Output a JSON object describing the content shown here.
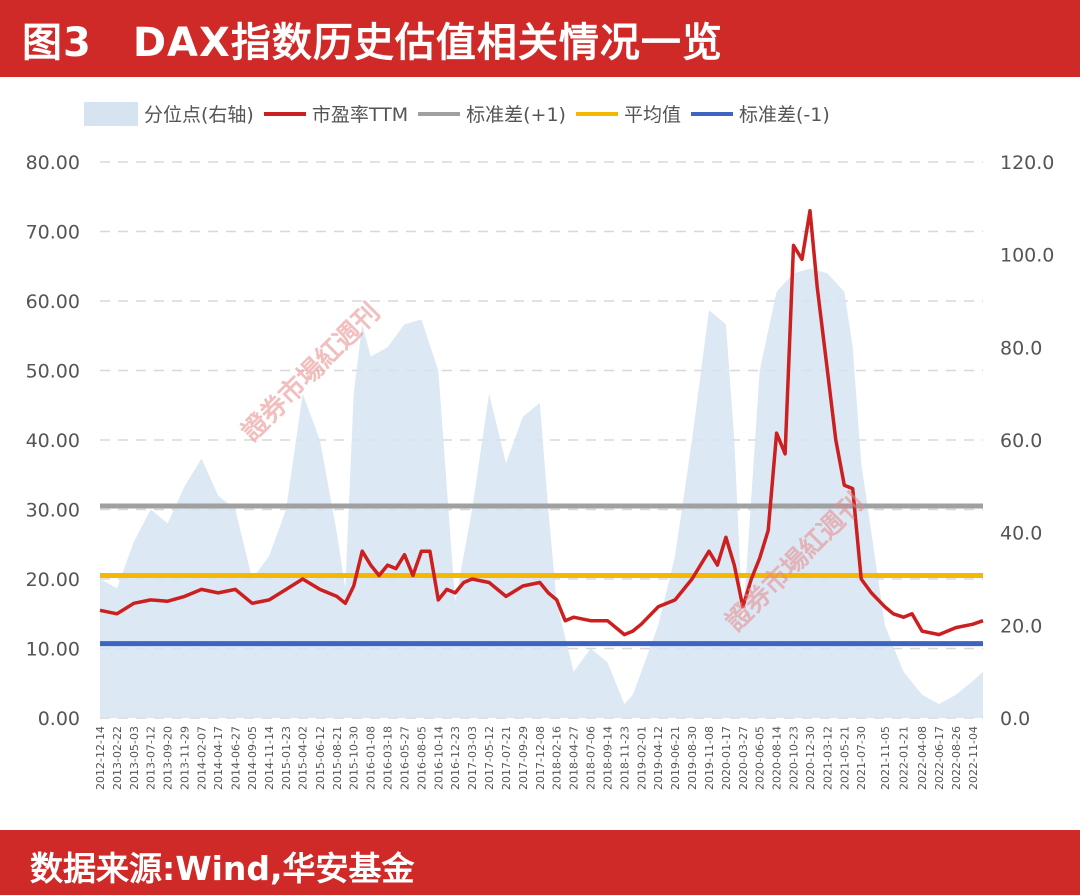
{
  "title": "图3　DAX指数历史估值相关情况一览",
  "footer": "数据来源:Wind,华安基金",
  "watermark_text": "證券市場紅週刊",
  "colors": {
    "band": "#d6e4f2",
    "pe": "#cc1f1f",
    "upper": "#a0a0a0",
    "mean": "#f5b800",
    "lower": "#3c64c0",
    "grid": "#d8d8d8",
    "banner": "#cf2a28"
  },
  "chart_data": {
    "type": "line",
    "legend_position": "top",
    "grid": "horizontal-dashed",
    "legend": [
      {
        "label": "分位点(右轴)",
        "key": "band",
        "style": "area"
      },
      {
        "label": "市盈率TTM",
        "key": "pe",
        "style": "line"
      },
      {
        "label": "标准差(+1)",
        "key": "upper",
        "style": "line"
      },
      {
        "label": "平均值",
        "key": "mean",
        "style": "line"
      },
      {
        "label": "标准差(-1)",
        "key": "lower",
        "style": "line"
      }
    ],
    "y_left": {
      "range": [
        0,
        80
      ],
      "ticks": [
        "0.00",
        "10.00",
        "20.00",
        "30.00",
        "40.00",
        "50.00",
        "60.00",
        "70.00",
        "80.00"
      ]
    },
    "y_right": {
      "range": [
        0,
        120
      ],
      "ticks": [
        "0.0",
        "20.0",
        "40.0",
        "60.0",
        "80.0",
        "100.0",
        "120.0"
      ]
    },
    "x_ticks": [
      "2012-12-14",
      "2013-02-22",
      "2013-05-03",
      "2013-07-12",
      "2013-09-20",
      "2013-11-29",
      "2014-02-07",
      "2014-04-17",
      "2014-06-27",
      "2014-09-05",
      "2014-11-14",
      "2015-01-23",
      "2015-04-02",
      "2015-06-12",
      "2015-08-21",
      "2015-10-30",
      "2016-01-08",
      "2016-03-18",
      "2016-05-27",
      "2016-08-05",
      "2016-10-14",
      "2016-12-23",
      "2017-03-03",
      "2017-05-12",
      "2017-07-21",
      "2017-09-29",
      "2017-12-08",
      "2018-02-16",
      "2018-04-27",
      "2018-07-06",
      "2018-09-14",
      "2018-11-23",
      "2019-02-01",
      "2019-04-12",
      "2019-06-21",
      "2019-08-30",
      "2019-11-08",
      "2020-01-17",
      "2020-03-27",
      "2020-06-05",
      "2020-08-14",
      "2020-10-23",
      "2020-12-30",
      "2021-03-12",
      "2021-05-21",
      "2021-07-30",
      "2021-11-05",
      "2022-01-21",
      "2022-04-08",
      "2022-06-17",
      "2022-08-26",
      "2022-11-04"
    ],
    "reference_lines": {
      "upper": 30.5,
      "mean": 20.5,
      "lower": 10.7
    },
    "series": [
      {
        "key": "pe",
        "name": "市盈率TTM",
        "axis": "left",
        "x": [
          "2012-12-14",
          "2013-02-22",
          "2013-05-03",
          "2013-07-12",
          "2013-09-20",
          "2013-11-29",
          "2014-02-07",
          "2014-04-17",
          "2014-06-27",
          "2014-09-05",
          "2014-11-14",
          "2015-01-23",
          "2015-04-02",
          "2015-06-12",
          "2015-08-21",
          "2015-09-25",
          "2015-10-30",
          "2015-12-04",
          "2016-01-08",
          "2016-02-12",
          "2016-03-18",
          "2016-04-22",
          "2016-05-27",
          "2016-07-01",
          "2016-08-05",
          "2016-09-09",
          "2016-10-14",
          "2016-11-18",
          "2016-12-23",
          "2017-01-27",
          "2017-03-03",
          "2017-05-12",
          "2017-07-21",
          "2017-09-29",
          "2017-12-08",
          "2018-01-12",
          "2018-02-16",
          "2018-03-23",
          "2018-04-27",
          "2018-07-06",
          "2018-09-14",
          "2018-10-19",
          "2018-11-23",
          "2018-12-28",
          "2019-02-01",
          "2019-04-12",
          "2019-06-21",
          "2019-08-30",
          "2019-11-08",
          "2019-12-13",
          "2020-01-17",
          "2020-02-21",
          "2020-03-27",
          "2020-05-01",
          "2020-06-05",
          "2020-07-10",
          "2020-08-14",
          "2020-09-18",
          "2020-10-23",
          "2020-11-27",
          "2020-12-30",
          "2021-01-29",
          "2021-03-12",
          "2021-04-16",
          "2021-05-21",
          "2021-06-25",
          "2021-07-30",
          "2021-09-10",
          "2021-11-05",
          "2021-12-10",
          "2022-01-21",
          "2022-02-25",
          "2022-04-08",
          "2022-06-17",
          "2022-08-26",
          "2022-11-04",
          "2022-12-16"
        ],
        "values": [
          15.5,
          15.0,
          16.5,
          17.0,
          16.8,
          17.5,
          18.5,
          18.0,
          18.5,
          16.5,
          17.0,
          18.5,
          20.0,
          18.5,
          17.5,
          16.5,
          19.0,
          24.0,
          22.0,
          20.5,
          22.0,
          21.5,
          23.5,
          20.5,
          24.0,
          24.0,
          17.0,
          18.5,
          18.0,
          19.5,
          20.0,
          19.5,
          17.5,
          19.0,
          19.5,
          18.0,
          17.0,
          14.0,
          14.5,
          14.0,
          14.0,
          13.0,
          12.0,
          12.5,
          13.5,
          16.0,
          17.0,
          20.0,
          24.0,
          22.0,
          26.0,
          22.0,
          16.0,
          20.0,
          23.0,
          27.0,
          41.0,
          38.0,
          68.0,
          66.0,
          73.0,
          62.0,
          50.0,
          40.0,
          33.5,
          33.0,
          20.0,
          18.0,
          16.0,
          15.0,
          14.5,
          15.0,
          12.5,
          12.0,
          13.0,
          13.5,
          14.0
        ]
      },
      {
        "key": "band",
        "name": "分位点(右轴)",
        "axis": "right",
        "x": [
          "2012-12-14",
          "2013-02-22",
          "2013-05-03",
          "2013-07-12",
          "2013-09-20",
          "2013-11-29",
          "2014-02-07",
          "2014-04-17",
          "2014-06-27",
          "2014-09-05",
          "2014-11-14",
          "2015-01-23",
          "2015-04-02",
          "2015-06-12",
          "2015-08-21",
          "2015-09-25",
          "2015-10-30",
          "2015-12-04",
          "2016-01-08",
          "2016-03-18",
          "2016-05-27",
          "2016-08-05",
          "2016-10-14",
          "2016-12-23",
          "2017-03-03",
          "2017-05-12",
          "2017-07-21",
          "2017-09-29",
          "2017-12-08",
          "2018-01-12",
          "2018-02-16",
          "2018-04-27",
          "2018-07-06",
          "2018-09-14",
          "2018-11-23",
          "2018-12-28",
          "2019-02-01",
          "2019-04-12",
          "2019-06-21",
          "2019-08-30",
          "2019-11-08",
          "2020-01-17",
          "2020-02-21",
          "2020-03-27",
          "2020-06-05",
          "2020-08-14",
          "2020-10-23",
          "2020-12-30",
          "2021-03-12",
          "2021-05-21",
          "2021-06-25",
          "2021-07-30",
          "2021-09-10",
          "2021-11-05",
          "2022-01-21",
          "2022-04-08",
          "2022-06-17",
          "2022-08-26",
          "2022-11-04",
          "2022-12-16"
        ],
        "values": [
          30.0,
          28.0,
          38.0,
          45.0,
          42.0,
          50.0,
          56.0,
          48.0,
          45.0,
          30.0,
          35.0,
          45.0,
          70.0,
          60.0,
          40.0,
          28.0,
          70.0,
          85.0,
          78.0,
          80.0,
          85.0,
          86.0,
          75.0,
          25.0,
          45.0,
          70.0,
          55.0,
          65.0,
          68.0,
          45.0,
          25.0,
          10.0,
          15.0,
          12.0,
          3.0,
          5.0,
          10.0,
          20.0,
          35.0,
          60.0,
          88.0,
          85.0,
          60.0,
          20.0,
          75.0,
          92.0,
          96.0,
          97.0,
          96.0,
          92.0,
          80.0,
          55.0,
          40.0,
          20.0,
          10.0,
          5.0,
          3.0,
          5.0,
          8.0,
          10.0
        ]
      }
    ]
  }
}
